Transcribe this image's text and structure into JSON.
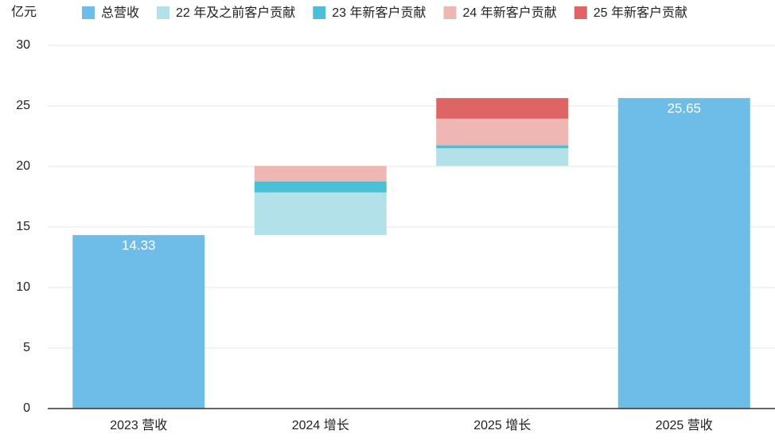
{
  "chart_data": {
    "type": "waterfall",
    "y_label": "亿元",
    "categories": [
      "2023 营收",
      "2024 增长",
      "2025 增长",
      "2025 营收"
    ],
    "series": [
      {
        "name": "总营收",
        "color": "#6dbde8",
        "values": [
          14.33,
          null,
          null,
          25.65
        ]
      },
      {
        "name": "22 年及之前客户贡献",
        "color": "#b2e1ea",
        "values": [
          null,
          3.52,
          1.45,
          null
        ]
      },
      {
        "name": "23 年新客户贡献",
        "color": "#4bbfd4",
        "values": [
          null,
          0.9,
          0.25,
          null
        ]
      },
      {
        "name": "24 年新客户贡献",
        "color": "#efb7b4",
        "values": [
          null,
          1.3,
          2.2,
          null
        ]
      },
      {
        "name": "25 年新客户贡献",
        "color": "#df6565",
        "values": [
          null,
          null,
          1.7,
          null
        ]
      }
    ],
    "ylim": [
      0,
      30
    ],
    "yticks": [
      0,
      5,
      10,
      15,
      20,
      25,
      30
    ],
    "grid": true
  }
}
